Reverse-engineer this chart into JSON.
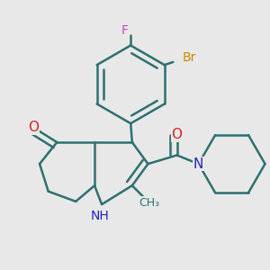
{
  "bg_color": "#e8e8e8",
  "bond_color": "#2d7070",
  "bond_width": 1.8,
  "dbo": 0.018,
  "atom_colors": {
    "F": "#cc44cc",
    "Br": "#cc8800",
    "O": "#dd2222",
    "N": "#2222cc",
    "C": "#2d7070"
  },
  "atom_fontsizes": {
    "F": 10,
    "Br": 10,
    "O": 11,
    "N": 11,
    "CH3": 9,
    "NH": 10
  },
  "fig_width": 3.0,
  "fig_height": 3.0,
  "dpi": 100
}
